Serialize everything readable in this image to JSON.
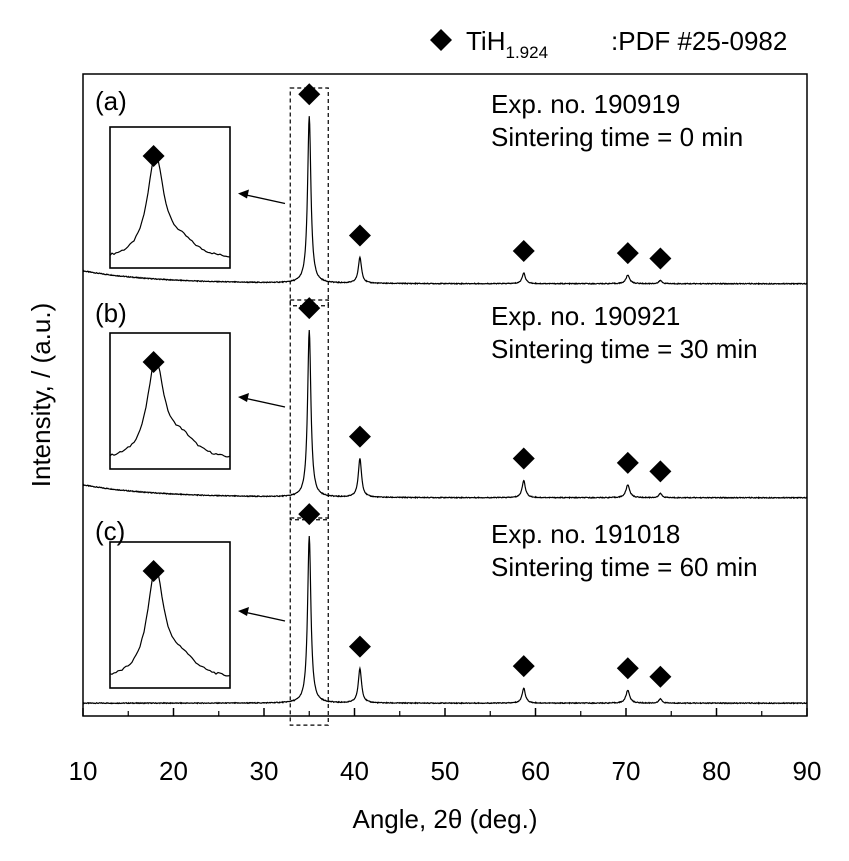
{
  "chart_data": {
    "type": "line",
    "title": "",
    "xlabel": "Angle, 2θ (deg.)",
    "ylabel": "Intensity, / (a.u.)",
    "xlim": [
      10,
      90
    ],
    "ylim": [
      0,
      3
    ],
    "x_ticks": [
      10,
      20,
      30,
      40,
      50,
      60,
      70,
      80,
      90
    ],
    "x_tick_labels": [
      "10",
      "20",
      "30",
      "40",
      "50",
      "60",
      "70",
      "80",
      "90"
    ],
    "legend": {
      "symbol": "filled-diamond",
      "phase_base": "TiH",
      "phase_subscript": "1.924",
      "reference": ":PDF #25-0982",
      "placement": "top-right outside"
    },
    "peak_markers_2theta": [
      35,
      40.6,
      58.7,
      70.2,
      73.8
    ],
    "highlight_range_2theta": [
      32.9,
      37.1
    ],
    "panels": [
      {
        "tag": "(a)",
        "exp_label": "Exp. no. 190919",
        "time_label": "Sintering time = 0 min",
        "baseline": 2.02,
        "background_tilt": 0.06,
        "peaks": [
          {
            "x": 35.0,
            "h": 0.78,
            "w": 0.22
          },
          {
            "x": 40.6,
            "h": 0.12,
            "w": 0.22
          },
          {
            "x": 58.7,
            "h": 0.05,
            "w": 0.22
          },
          {
            "x": 70.2,
            "h": 0.04,
            "w": 0.25
          },
          {
            "x": 73.8,
            "h": 0.015,
            "w": 0.2
          }
        ],
        "inset_tail": 0.25
      },
      {
        "tag": "(b)",
        "exp_label": "Exp. no. 190921",
        "time_label": "Sintering time = 30 min",
        "baseline": 1.02,
        "background_tilt": 0.06,
        "peaks": [
          {
            "x": 35.0,
            "h": 0.78,
            "w": 0.22
          },
          {
            "x": 40.6,
            "h": 0.18,
            "w": 0.22
          },
          {
            "x": 58.7,
            "h": 0.08,
            "w": 0.22
          },
          {
            "x": 70.2,
            "h": 0.06,
            "w": 0.25
          },
          {
            "x": 73.8,
            "h": 0.02,
            "w": 0.2
          }
        ],
        "inset_tail": 0.35
      },
      {
        "tag": "(c)",
        "exp_label": "Exp. no. 191018",
        "time_label": "Sintering time = 60 min",
        "baseline": 0.06,
        "background_tilt": 0.0,
        "peaks": [
          {
            "x": 35.0,
            "h": 0.78,
            "w": 0.22
          },
          {
            "x": 40.6,
            "h": 0.16,
            "w": 0.22
          },
          {
            "x": 58.7,
            "h": 0.07,
            "w": 0.22
          },
          {
            "x": 70.2,
            "h": 0.06,
            "w": 0.25
          },
          {
            "x": 73.8,
            "h": 0.02,
            "w": 0.2
          }
        ],
        "inset_tail": 0.3
      }
    ]
  }
}
